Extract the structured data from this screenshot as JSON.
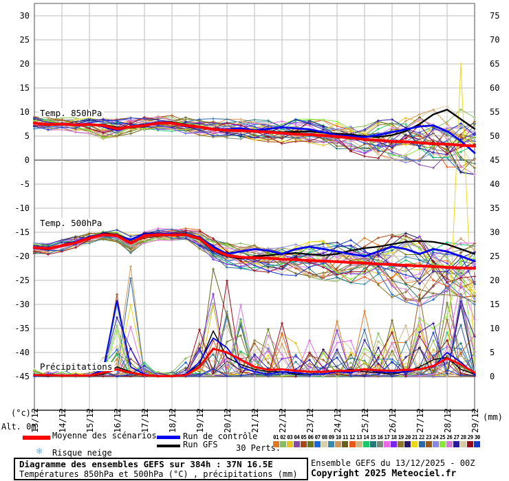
{
  "axes": {
    "left_unit": "(°c)",
    "right_unit": "(mm)",
    "alt_label": "Alt. 0m",
    "left_ticks": [
      30,
      25,
      20,
      15,
      10,
      5,
      0,
      -5,
      -10,
      -15,
      -20,
      -25,
      -30,
      -35,
      -40,
      -45
    ],
    "right_ticks": [
      75,
      70,
      65,
      60,
      55,
      50,
      45,
      40,
      35,
      30,
      25,
      20,
      15,
      10,
      5,
      0
    ],
    "x_labels": [
      "13/12",
      "14/12",
      "15/12",
      "16/12",
      "17/12",
      "18/12",
      "19/12",
      "20/12",
      "21/12",
      "22/12",
      "23/12",
      "24/12",
      "25/12",
      "26/12",
      "27/12",
      "28/12",
      "29/12"
    ]
  },
  "panel_labels": {
    "t850": "Temp. 850hPa",
    "t500": "Temp. 500hPa",
    "precip": "Précipitations"
  },
  "legend": {
    "mean_label": "Moyenne des scénarios",
    "mean_color": "#ff0000",
    "control_label": "Run de contrôle",
    "control_color": "#0000ee",
    "gfs_label": "Run GFS",
    "gfs_color": "#000000",
    "perts_label": "30 Perts.",
    "snow_label": "Risque neige",
    "snow_icon_color": "#6cb2e8",
    "members": [
      {
        "id": "01",
        "color": "#e07820"
      },
      {
        "id": "02",
        "color": "#88bc60"
      },
      {
        "id": "03",
        "color": "#e8c020"
      },
      {
        "id": "04",
        "color": "#8848a8"
      },
      {
        "id": "05",
        "color": "#a84818"
      },
      {
        "id": "06",
        "color": "#687818"
      },
      {
        "id": "07",
        "color": "#1868d8"
      },
      {
        "id": "08",
        "color": "#d8d0a8"
      },
      {
        "id": "09",
        "color": "#3888a8"
      },
      {
        "id": "10",
        "color": "#d09858"
      },
      {
        "id": "11",
        "color": "#686018"
      },
      {
        "id": "12",
        "color": "#e85818"
      },
      {
        "id": "13",
        "color": "#c8b888"
      },
      {
        "id": "14",
        "color": "#18c868"
      },
      {
        "id": "15",
        "color": "#287878"
      },
      {
        "id": "16",
        "color": "#788878"
      },
      {
        "id": "17",
        "color": "#e868e8"
      },
      {
        "id": "18",
        "color": "#7828e8"
      },
      {
        "id": "19",
        "color": "#887828"
      },
      {
        "id": "20",
        "color": "#281868"
      },
      {
        "id": "21",
        "color": "#e8d818"
      },
      {
        "id": "22",
        "color": "#2868a8"
      },
      {
        "id": "23",
        "color": "#985818"
      },
      {
        "id": "24",
        "color": "#8888e8"
      },
      {
        "id": "25",
        "color": "#88e838"
      },
      {
        "id": "26",
        "color": "#d878d8"
      },
      {
        "id": "27",
        "color": "#2818a8"
      },
      {
        "id": "28",
        "color": "#d8c8a0"
      },
      {
        "id": "29",
        "color": "#980818"
      },
      {
        "id": "30",
        "color": "#1838c8"
      }
    ]
  },
  "footer": {
    "title": "Diagramme des ensembles GEFS sur 384h : 37N 16.5E",
    "subtitle": "Températures 850hPa et 500hPa (°C) , précipitations (mm)",
    "run_info": "Ensemble GEFS du 13/12/2025 - 00Z",
    "copyright": "Copyright 2025 Meteociel.fr"
  },
  "chart_data": [
    {
      "type": "line",
      "id": "temp850",
      "title": "Temp. 850hPa (°C)",
      "x_start": "13/12 00h",
      "x_step_hours": 12,
      "seed": 850,
      "series": {
        "mean": [
          7.7,
          7.4,
          7.5,
          7.3,
          7.4,
          7.2,
          6.5,
          6.9,
          7.2,
          7.7,
          7.7,
          7.2,
          6.9,
          6.4,
          6.2,
          6.1,
          6.0,
          5.8,
          5.6,
          5.4,
          5.3,
          5.1,
          4.9,
          4.6,
          4.3,
          4.1,
          3.9,
          3.8,
          3.6,
          3.4,
          3.3,
          3.1,
          2.9
        ],
        "control": [
          7.8,
          7.3,
          7.6,
          7.4,
          7.5,
          7.0,
          6.2,
          7.0,
          7.4,
          7.9,
          7.8,
          7.0,
          6.8,
          6.5,
          6.4,
          6.6,
          6.2,
          6.5,
          6.8,
          6.6,
          6.4,
          5.8,
          5.2,
          5.0,
          4.8,
          5.2,
          5.8,
          6.4,
          7.0,
          7.2,
          6.0,
          4.0,
          1.5
        ],
        "gfs": [
          7.6,
          7.5,
          7.4,
          7.2,
          7.3,
          7.4,
          6.8,
          6.7,
          7.1,
          7.8,
          7.9,
          7.4,
          7.0,
          6.3,
          6.1,
          6.0,
          6.2,
          6.0,
          5.8,
          5.9,
          6.0,
          5.7,
          5.5,
          5.3,
          5.0,
          4.8,
          5.2,
          6.0,
          7.5,
          9.5,
          10.5,
          8.5,
          6.5
        ]
      },
      "envelope": {
        "min": [
          6.5,
          6.2,
          6.3,
          5.8,
          5.5,
          4.3,
          4.4,
          5.5,
          6.0,
          6.2,
          6.0,
          5.5,
          5.2,
          4.8,
          4.6,
          4.4,
          4.2,
          3.8,
          3.2,
          2.8,
          2.6,
          2.3,
          2.0,
          1.5,
          0.8,
          0.4,
          0.0,
          -0.5,
          -1.0,
          -1.6,
          -2.0,
          -2.6,
          -3.0
        ],
        "max": [
          9.0,
          8.8,
          8.8,
          8.8,
          8.8,
          8.6,
          8.5,
          8.8,
          9.0,
          9.3,
          9.5,
          9.2,
          8.8,
          8.6,
          8.5,
          8.5,
          8.5,
          8.5,
          8.5,
          8.5,
          8.5,
          8.4,
          8.2,
          8.0,
          8.0,
          8.2,
          8.5,
          8.8,
          9.5,
          10.5,
          11.5,
          11.0,
          10.0
        ]
      }
    },
    {
      "type": "line",
      "id": "temp500",
      "title": "Temp. 500hPa (°C)",
      "x_start": "13/12 00h",
      "x_step_hours": 12,
      "seed": 500,
      "series": {
        "mean": [
          -18.2,
          -18.4,
          -17.8,
          -17.2,
          -16.2,
          -15.5,
          -15.7,
          -17.3,
          -15.7,
          -15.5,
          -15.6,
          -15.5,
          -16.3,
          -18.6,
          -19.8,
          -20.2,
          -20.3,
          -20.4,
          -20.6,
          -20.7,
          -20.9,
          -21.0,
          -21.1,
          -21.3,
          -21.4,
          -21.6,
          -21.7,
          -21.9,
          -22.0,
          -22.1,
          -22.3,
          -22.4,
          -22.5
        ],
        "control": [
          -18.3,
          -18.5,
          -17.7,
          -17.0,
          -16.0,
          -15.3,
          -15.8,
          -16.5,
          -15.4,
          -15.3,
          -15.4,
          -15.6,
          -16.0,
          -18.0,
          -19.5,
          -19.0,
          -18.5,
          -18.8,
          -19.5,
          -18.5,
          -18.0,
          -18.5,
          -19.0,
          -19.5,
          -20.0,
          -19.0,
          -18.0,
          -18.5,
          -19.5,
          -18.5,
          -19.0,
          -20.0,
          -21.0
        ],
        "gfs": [
          -18.2,
          -18.4,
          -17.9,
          -17.1,
          -16.1,
          -15.2,
          -15.5,
          -16.6,
          -15.3,
          -15.2,
          -15.5,
          -15.3,
          -16.5,
          -18.8,
          -20.0,
          -20.5,
          -20.0,
          -19.8,
          -19.5,
          -19.3,
          -19.6,
          -19.8,
          -19.5,
          -18.8,
          -18.3,
          -18.0,
          -17.5,
          -17.0,
          -16.8,
          -17.0,
          -17.5,
          -18.5,
          -19.5
        ]
      },
      "envelope": {
        "min": [
          -19.5,
          -19.6,
          -19.0,
          -18.3,
          -17.3,
          -16.5,
          -17.0,
          -19.3,
          -17.3,
          -16.6,
          -16.8,
          -16.8,
          -18.5,
          -21.0,
          -22.3,
          -22.8,
          -23.0,
          -23.3,
          -23.8,
          -24.0,
          -24.5,
          -25.0,
          -25.3,
          -25.5,
          -25.8,
          -26.5,
          -28.5,
          -29.5,
          -30.3,
          -29.0,
          -28.0,
          -29.0,
          -30.0
        ],
        "max": [
          -17.2,
          -17.4,
          -16.6,
          -15.8,
          -15.0,
          -14.6,
          -14.5,
          -15.2,
          -14.4,
          -14.2,
          -14.3,
          -14.2,
          -14.5,
          -16.0,
          -17.0,
          -17.3,
          -17.5,
          -17.5,
          -17.5,
          -17.3,
          -17.0,
          -16.8,
          -16.5,
          -16.2,
          -16.0,
          -15.8,
          -15.5,
          -15.2,
          -15.0,
          -15.0,
          -15.0,
          -15.2,
          -15.5
        ]
      }
    },
    {
      "type": "line",
      "id": "precip",
      "title": "Précipitations (mm)",
      "x_start": "13/12 00h",
      "x_step_hours": 12,
      "seed": 42,
      "series": {
        "mean": [
          0.3,
          0.3,
          0.2,
          0.2,
          0.2,
          0.8,
          1.5,
          0.8,
          0.3,
          0.1,
          0.1,
          0.3,
          2.0,
          5.8,
          5.0,
          3.5,
          2.0,
          1.4,
          1.5,
          1.2,
          1.0,
          1.0,
          1.2,
          1.2,
          1.5,
          1.3,
          1.2,
          1.4,
          1.5,
          2.2,
          3.8,
          2.5,
          0.8
        ],
        "control": [
          0.2,
          0.2,
          0.3,
          0.2,
          0.2,
          1.5,
          15.8,
          2.0,
          0.5,
          0.1,
          0.1,
          0.5,
          3.0,
          8.0,
          6.0,
          2.0,
          1.0,
          0.5,
          1.0,
          0.8,
          0.5,
          0.5,
          1.0,
          0.8,
          1.5,
          1.0,
          0.8,
          1.0,
          1.5,
          2.0,
          5.0,
          3.0,
          0.5
        ],
        "gfs": [
          0.2,
          0.1,
          0.2,
          0.1,
          0.1,
          0.5,
          2.0,
          1.0,
          0.3,
          0.1,
          0.1,
          0.5,
          2.5,
          9.5,
          4.0,
          2.5,
          1.5,
          1.0,
          1.0,
          0.5,
          0.5,
          0.5,
          1.0,
          1.5,
          1.0,
          0.8,
          0.5,
          1.0,
          2.0,
          3.5,
          4.0,
          1.5,
          0.5
        ]
      },
      "envelope_max": [
        1.5,
        1.0,
        1.5,
        0.8,
        0.8,
        4.0,
        18.0,
        24.0,
        3.0,
        1.0,
        1.0,
        4.0,
        10.0,
        23.0,
        21.0,
        16.0,
        8.0,
        10.0,
        12.0,
        7.0,
        8.0,
        6.0,
        12.0,
        8.0,
        14.0,
        9.0,
        12.0,
        11.0,
        17.0,
        12.0,
        22.0,
        25.0,
        12.0
      ],
      "outlier": {
        "member_index": 20,
        "step": 31,
        "value": 65
      }
    }
  ]
}
